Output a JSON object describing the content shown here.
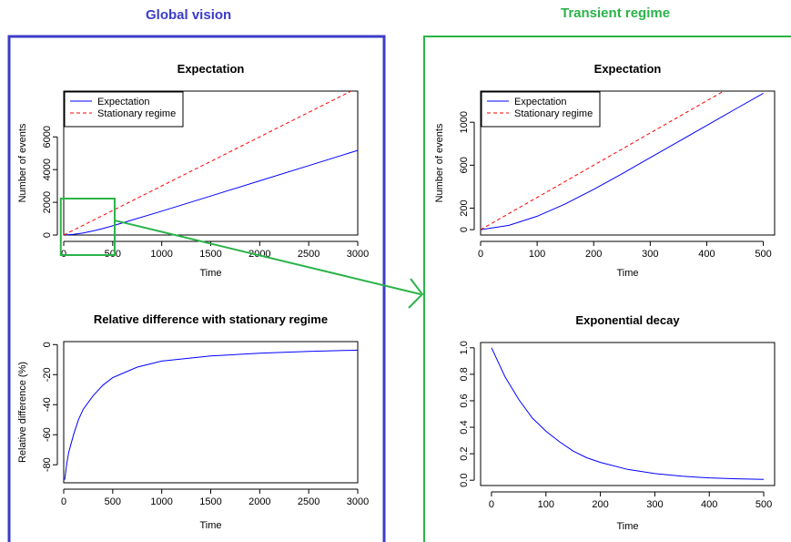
{
  "headings": {
    "left": "Global vision",
    "right": "Transient regime"
  },
  "colors": {
    "left_frame": "#3c3cc8",
    "right_frame": "#2bb34a",
    "expectation": "#0000ff",
    "stationary": "#ff0000",
    "zoom_box": "#2bb34a"
  },
  "chart_data": [
    {
      "id": "global-expectation",
      "type": "line",
      "title": "Expectation",
      "xlabel": "Time",
      "ylabel": "Number of events",
      "xlim": [
        0,
        3000
      ],
      "ylim": [
        0,
        8800
      ],
      "xticks": [
        0,
        500,
        1000,
        1500,
        2000,
        2500,
        3000
      ],
      "yticks": [
        0,
        2000,
        4000,
        6000
      ],
      "legend": {
        "position": "top-left",
        "entries": [
          "Expectation",
          "Stationary regime"
        ]
      },
      "series": [
        {
          "name": "Expectation",
          "color": "#0000ff",
          "dash": "solid",
          "x": [
            0,
            100,
            200,
            300,
            400,
            500,
            1000,
            1500,
            2000,
            2500,
            3000
          ],
          "y": [
            0,
            41,
            130,
            252,
            397,
            560,
            1460,
            2385,
            3315,
            4245,
            5175
          ]
        },
        {
          "name": "Stationary regime",
          "color": "#ff0000",
          "dash": "dashed",
          "x": [
            0,
            3000
          ],
          "y": [
            0,
            9000
          ]
        }
      ]
    },
    {
      "id": "global-relative-difference",
      "type": "line",
      "title": "Relative difference with stationary regime",
      "xlabel": "Time",
      "ylabel": "Relative difference (%)",
      "xlim": [
        0,
        3000
      ],
      "ylim": [
        -92,
        2
      ],
      "xticks": [
        0,
        500,
        1000,
        1500,
        2000,
        2500,
        3000
      ],
      "yticks": [
        0,
        -20,
        -40,
        -60,
        -80
      ],
      "series": [
        {
          "name": "",
          "color": "#0000ff",
          "dash": "solid",
          "x": [
            10,
            30,
            50,
            100,
            150,
            200,
            300,
            400,
            500,
            750,
            1000,
            1500,
            2000,
            2500,
            3000
          ],
          "y": [
            -90,
            -80,
            -72,
            -60,
            -50,
            -43,
            -34,
            -27,
            -22,
            -15,
            -11,
            -7.6,
            -5.7,
            -4.5,
            -3.7
          ]
        }
      ]
    },
    {
      "id": "transient-expectation",
      "type": "line",
      "title": "Expectation",
      "xlabel": "Time",
      "ylabel": "Number of events",
      "xlim": [
        0,
        520
      ],
      "ylim": [
        -50,
        1290
      ],
      "xticks": [
        0,
        100,
        200,
        300,
        400,
        500
      ],
      "yticks": [
        0,
        200,
        600,
        1000
      ],
      "legend": {
        "position": "top-left",
        "entries": [
          "Expectation",
          "Stationary regime"
        ]
      },
      "series": [
        {
          "name": "Expectation",
          "color": "#0000ff",
          "dash": "solid",
          "x": [
            0,
            50,
            100,
            150,
            200,
            250,
            300,
            350,
            400,
            450,
            500
          ],
          "y": [
            0,
            40,
            125,
            240,
            375,
            520,
            670,
            820,
            970,
            1120,
            1270
          ]
        },
        {
          "name": "Stationary regime",
          "color": "#ff0000",
          "dash": "dashed",
          "x": [
            0,
            440
          ],
          "y": [
            0,
            1320
          ]
        }
      ]
    },
    {
      "id": "transient-exponential-decay",
      "type": "line",
      "title": "Exponential decay",
      "xlabel": "Time",
      "ylabel": "",
      "xlim": [
        -20,
        520
      ],
      "ylim": [
        -0.04,
        1.04
      ],
      "xticks": [
        0,
        100,
        200,
        300,
        400,
        500
      ],
      "yticks": [
        0.0,
        0.2,
        0.4,
        0.6,
        0.8,
        1.0
      ],
      "series": [
        {
          "name": "",
          "color": "#0000ff",
          "dash": "solid",
          "x": [
            0,
            25,
            50,
            75,
            100,
            125,
            150,
            175,
            200,
            250,
            300,
            350,
            400,
            450,
            500
          ],
          "y": [
            1.0,
            0.78,
            0.61,
            0.47,
            0.37,
            0.29,
            0.22,
            0.17,
            0.135,
            0.082,
            0.05,
            0.03,
            0.018,
            0.011,
            0.007
          ]
        }
      ]
    }
  ]
}
